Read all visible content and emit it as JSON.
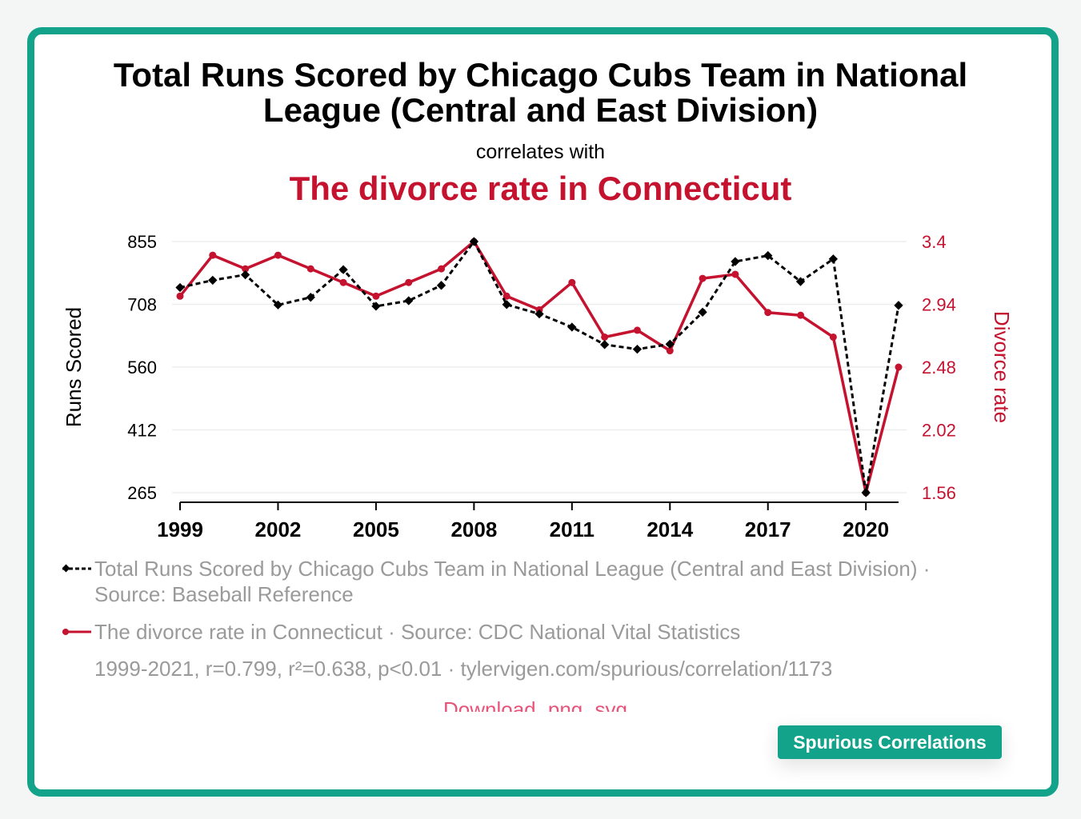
{
  "header": {
    "title_line1": "Total Runs Scored by Chicago Cubs Team in National",
    "title_line2": "League (Central and East Division)",
    "correlates": "correlates with",
    "subtitle": "The divorce rate in Connecticut"
  },
  "chart_data": {
    "type": "line",
    "x": [
      1999,
      2000,
      2001,
      2002,
      2003,
      2004,
      2005,
      2006,
      2007,
      2008,
      2009,
      2010,
      2011,
      2012,
      2013,
      2014,
      2015,
      2016,
      2017,
      2018,
      2019,
      2020,
      2021
    ],
    "x_tick_labels": [
      "1999",
      "2002",
      "2005",
      "2008",
      "2011",
      "2014",
      "2017",
      "2020"
    ],
    "left_axis": {
      "label": "Runs Scored",
      "ticks": [
        "855",
        "708",
        "560",
        "412",
        "265"
      ],
      "ylim": [
        265,
        855
      ]
    },
    "right_axis": {
      "label": "Divorce rate",
      "ticks": [
        "3.4",
        "2.94",
        "2.48",
        "2.02",
        "1.56"
      ],
      "ylim": [
        1.56,
        3.4
      ]
    },
    "series": [
      {
        "name": "Total Runs Scored by Chicago Cubs Team in National League (Central and East Division)",
        "axis": "left",
        "color": "#000000",
        "style": "dashed",
        "marker": "diamond",
        "values": [
          747,
          764,
          777,
          706,
          724,
          789,
          703,
          716,
          752,
          855,
          707,
          685,
          654,
          613,
          602,
          614,
          689,
          808,
          822,
          761,
          814,
          265,
          705
        ]
      },
      {
        "name": "The divorce rate in Connecticut",
        "axis": "right",
        "color": "#c4122f",
        "style": "solid",
        "marker": "circle",
        "values": [
          3.0,
          3.3,
          3.2,
          3.3,
          3.2,
          3.1,
          3.0,
          3.1,
          3.2,
          3.4,
          3.0,
          2.9,
          3.1,
          2.7,
          2.75,
          2.6,
          3.13,
          3.16,
          2.88,
          2.86,
          2.7,
          1.56,
          2.48
        ]
      }
    ],
    "grid": true
  },
  "legend": {
    "series1_text": "Total Runs Scored by Chicago Cubs Team in National League (Central and East Division) · Source: Baseball Reference",
    "series2_text": "The divorce rate in Connecticut · Source: CDC National Vital Statistics",
    "stats": "1999-2021, r=0.799, r²=0.638, p<0.01 · tylervigen.com/spurious/correlation/1173"
  },
  "download": {
    "label": "Download",
    "png": "png",
    "svg": "svg"
  },
  "badge": "Spurious Correlations",
  "colors": {
    "accent": "#12a38a",
    "series_red": "#c4122f",
    "series_black": "#000000"
  }
}
